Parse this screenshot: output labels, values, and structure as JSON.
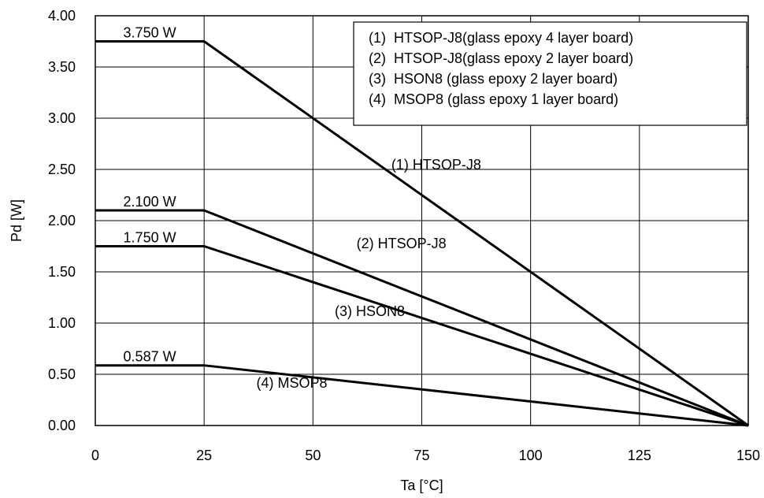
{
  "chart_data": {
    "type": "line",
    "title": "",
    "xlabel": "Ta [°C]",
    "ylabel": "Pd [W]",
    "xlim": [
      0,
      150
    ],
    "ylim": [
      0,
      4.0
    ],
    "xticks": [
      "0",
      "25",
      "50",
      "75",
      "100",
      "125",
      "150"
    ],
    "yticks": [
      "0.00",
      "0.50",
      "1.00",
      "1.50",
      "2.00",
      "2.50",
      "3.00",
      "3.50",
      "4.00"
    ],
    "grid": true,
    "legend_position": "top-right",
    "legend": [
      "(1)  HTSOP-J8(glass epoxy 4 layer board)",
      "(2)  HTSOP-J8(glass epoxy 2 layer board)",
      "(3)  HSON8 (glass epoxy 2 layer board)",
      "(4)  MSOP8 (glass epoxy 1 layer board)"
    ],
    "series": [
      {
        "x": [
          0,
          25,
          150
        ],
        "y": [
          3.75,
          3.75,
          0
        ],
        "plateau_label": "3.750 W",
        "curve_label": "(1) HTSOP-J8"
      },
      {
        "x": [
          0,
          25,
          150
        ],
        "y": [
          2.1,
          2.1,
          0
        ],
        "plateau_label": "2.100 W",
        "curve_label": "(2) HTSOP-J8"
      },
      {
        "x": [
          0,
          25,
          150
        ],
        "y": [
          1.75,
          1.75,
          0
        ],
        "plateau_label": "1.750 W",
        "curve_label": "(3) HSON8"
      },
      {
        "x": [
          0,
          25,
          150
        ],
        "y": [
          0.587,
          0.587,
          0
        ],
        "plateau_label": "0.587 W",
        "curve_label": "(4) MSOP8"
      }
    ],
    "colors": {
      "line": "#000000",
      "grid": "#000000",
      "background": "#ffffff"
    }
  }
}
